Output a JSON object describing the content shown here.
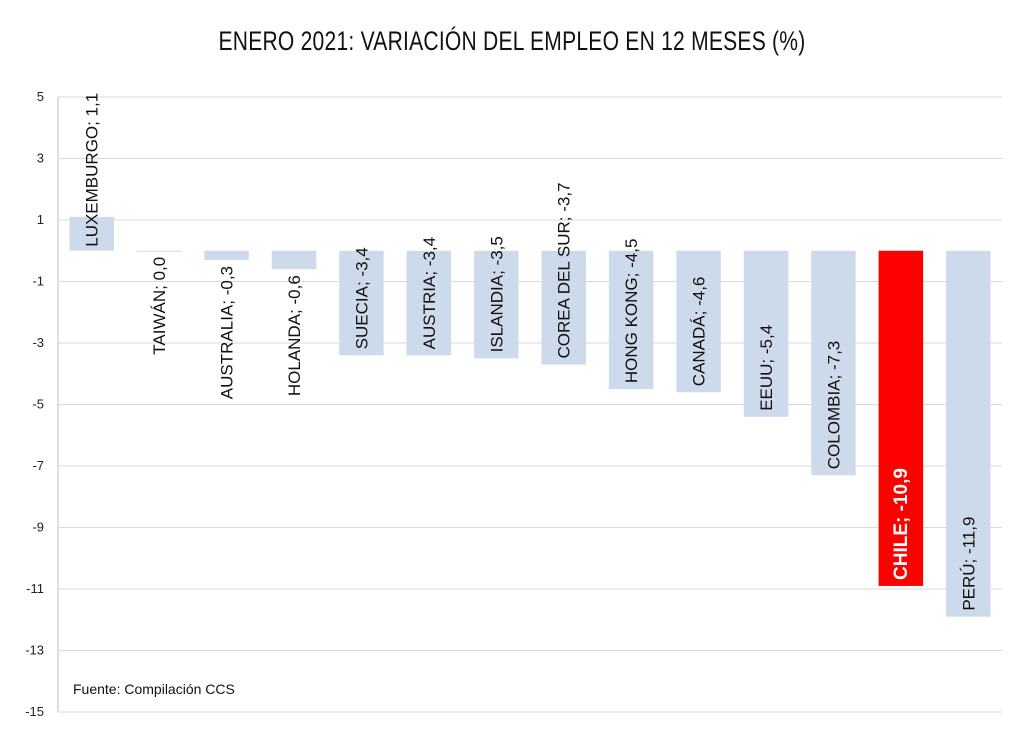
{
  "chart_data": {
    "type": "bar",
    "title": "ENERO 2021: VARIACIÓN DEL EMPLEO EN 12 MESES (%)",
    "source": "Fuente: Compilación CCS",
    "xlabel": "",
    "ylabel": "",
    "ylim": [
      -15,
      5
    ],
    "yticks": [
      5,
      3,
      1,
      -1,
      -3,
      -5,
      -7,
      -9,
      -11,
      -13,
      -15
    ],
    "grid": true,
    "legend": "none",
    "bar_color": "#cddaec",
    "highlight_color": "#ff0000",
    "highlight_index": 12,
    "bar_labels": [
      "LUXEMBURGO; 1,1",
      "TAIWÁN; 0,0",
      "AUSTRALIA; -0,3",
      "HOLANDA; -0,6",
      "SUECIA; -3,4",
      "AUSTRIA; -3,4",
      "ISLANDIA; -3,5",
      "COREA DEL SUR; -3,7",
      "HONG KONG; -4,5",
      "CANADÁ; -4,6",
      "EEUU; -5,4",
      "COLOMBIA; -7,3",
      "CHILE; -10,9",
      "PERÚ; -11,9"
    ],
    "categories": [
      "LUXEMBURGO",
      "TAIWÁN",
      "AUSTRALIA",
      "HOLANDA",
      "SUECIA",
      "AUSTRIA",
      "ISLANDIA",
      "COREA DEL SUR",
      "HONG KONG",
      "CANADÁ",
      "EEUU",
      "COLOMBIA",
      "CHILE",
      "PERÚ"
    ],
    "values": [
      1.1,
      0.0,
      -0.3,
      -0.6,
      -3.4,
      -3.4,
      -3.5,
      -3.7,
      -4.5,
      -4.6,
      -5.4,
      -7.3,
      -10.9,
      -11.9
    ]
  }
}
